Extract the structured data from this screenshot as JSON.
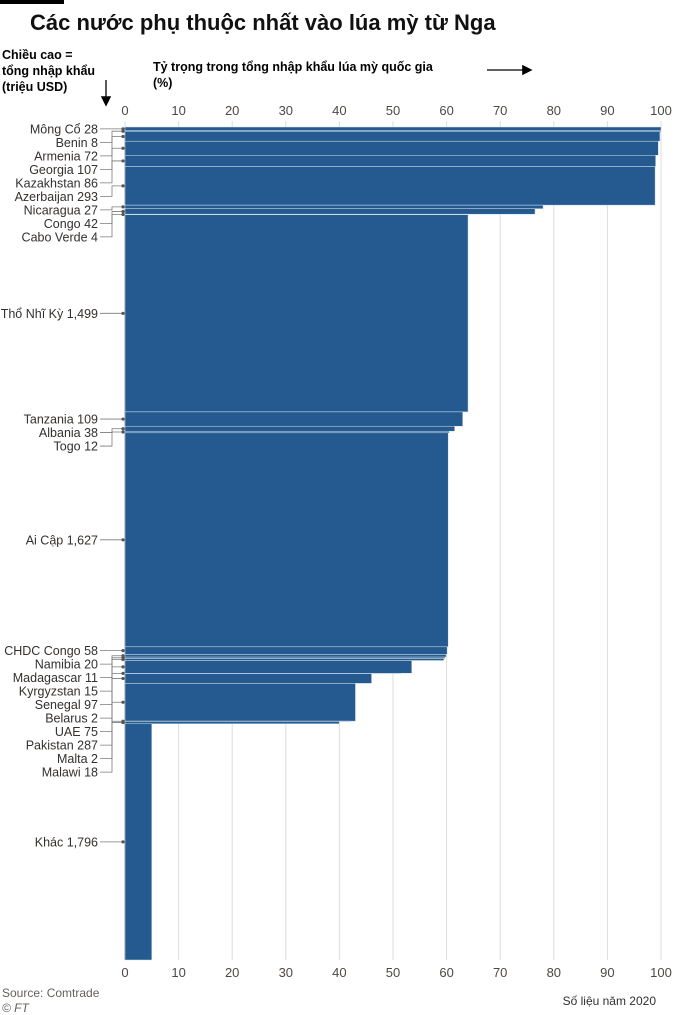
{
  "title": "Các nước phụ thuộc nhất vào lúa mỳ từ Nga",
  "height_label": [
    "Chiều cao =",
    "tổng nhập khẩu",
    "(triệu USD)"
  ],
  "x_axis_label": [
    "Tỷ trọng trong tổng nhập khẩu lúa mỳ quốc gia",
    "(%)"
  ],
  "source": "Source: Comtrade",
  "logo": "© FT",
  "note": "Số liệu năm 2020",
  "colors": {
    "bar": "#245a8f",
    "bar_edge": "#d6e1ec",
    "grid": "#e2dcd6",
    "leader": "#7a7a7a"
  },
  "chart_data": {
    "type": "bar",
    "subtype": "variable-width (mekko) bar: bar height = total wheat imports, bar length = share from Russia",
    "title": "Các nước phụ thuộc nhất vào lúa mỳ từ Nga",
    "xlabel": "Tỷ trọng trong tổng nhập khẩu lúa mỳ quốc gia (%)",
    "ylabel": "Chiều cao = tổng nhập khẩu (triệu USD)",
    "xlim": [
      0,
      100
    ],
    "xticks": [
      0,
      10,
      20,
      30,
      40,
      50,
      60,
      70,
      80,
      90,
      100
    ],
    "grid": true,
    "categories": [
      {
        "name": "Mông Cổ",
        "imports_label": "28",
        "imports": 28,
        "share": 100
      },
      {
        "name": "Benin",
        "imports_label": "8",
        "imports": 8,
        "share": 100
      },
      {
        "name": "Armenia",
        "imports_label": "72",
        "imports": 72,
        "share": 99.8
      },
      {
        "name": "Georgia",
        "imports_label": "107",
        "imports": 107,
        "share": 99.5
      },
      {
        "name": "Kazakhstan",
        "imports_label": "86",
        "imports": 86,
        "share": 99.0
      },
      {
        "name": "Azerbaijan",
        "imports_label": "293",
        "imports": 293,
        "share": 98.9
      },
      {
        "name": "Nicaragua",
        "imports_label": "27",
        "imports": 27,
        "share": 78.0
      },
      {
        "name": "Congo",
        "imports_label": "42",
        "imports": 42,
        "share": 76.5
      },
      {
        "name": "Cabo Verde",
        "imports_label": "4",
        "imports": 4,
        "share": 64.0
      },
      {
        "name": "Thổ Nhĩ Kỳ",
        "imports_label": "1,499",
        "imports": 1499,
        "share": 64.0
      },
      {
        "name": "Tanzania",
        "imports_label": "109",
        "imports": 109,
        "share": 63.0
      },
      {
        "name": "Albania",
        "imports_label": "38",
        "imports": 38,
        "share": 61.5
      },
      {
        "name": "Togo",
        "imports_label": "12",
        "imports": 12,
        "share": 60.5
      },
      {
        "name": "Ai Cập",
        "imports_label": "1,627",
        "imports": 1627,
        "share": 60.3
      },
      {
        "name": "CHDC Congo",
        "imports_label": "58",
        "imports": 58,
        "share": 60.1
      },
      {
        "name": "Namibia",
        "imports_label": "20",
        "imports": 20,
        "share": 59.9
      },
      {
        "name": "Madagascar",
        "imports_label": "11",
        "imports": 11,
        "share": 59.7
      },
      {
        "name": "Kyrgyzstan",
        "imports_label": "15",
        "imports": 15,
        "share": 59.5
      },
      {
        "name": "Senegal",
        "imports_label": "97",
        "imports": 97,
        "share": 53.5
      },
      {
        "name": "Belarus",
        "imports_label": "2",
        "imports": 2,
        "share": 51.5
      },
      {
        "name": "UAE",
        "imports_label": "75",
        "imports": 75,
        "share": 46.0
      },
      {
        "name": "Pakistan",
        "imports_label": "287",
        "imports": 287,
        "share": 43.0
      },
      {
        "name": "Malta",
        "imports_label": "2",
        "imports": 2,
        "share": 42.0
      },
      {
        "name": "Malawi",
        "imports_label": "18",
        "imports": 18,
        "share": 40.0
      },
      {
        "name": "Khác",
        "imports_label": "1,796",
        "imports": 1796,
        "share": 5.0
      }
    ]
  }
}
